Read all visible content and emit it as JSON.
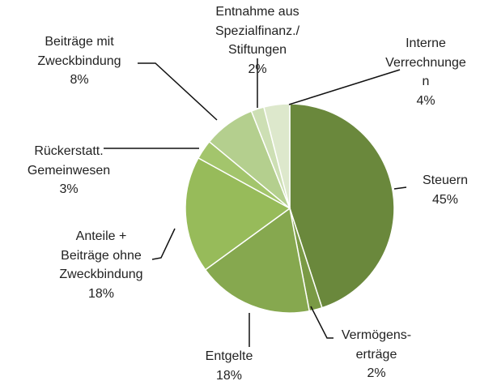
{
  "chart_data": {
    "type": "pie",
    "categories": [
      "Steuern",
      "Vermögens-\nerträge",
      "Entgelte",
      "Anteile +\nBeiträge ohne\nZweckbindung",
      "Rückerstatt.\nGemeinwesen",
      "Beiträge mit\nZweckbindung",
      "Entnahme aus\nSpezialfinanz./\nStiftungen",
      "Interne\nVerrechnunge\nn"
    ],
    "values": [
      45,
      2,
      18,
      18,
      3,
      8,
      2,
      4
    ],
    "value_labels": [
      "45%",
      "2%",
      "18%",
      "18%",
      "3%",
      "8%",
      "2%",
      "4%"
    ],
    "colors": [
      "#6a883c",
      "#7a9a45",
      "#86a84f",
      "#97bb5a",
      "#a3c56c",
      "#b4cf8e",
      "#cddfb4",
      "#dde8cc"
    ]
  }
}
